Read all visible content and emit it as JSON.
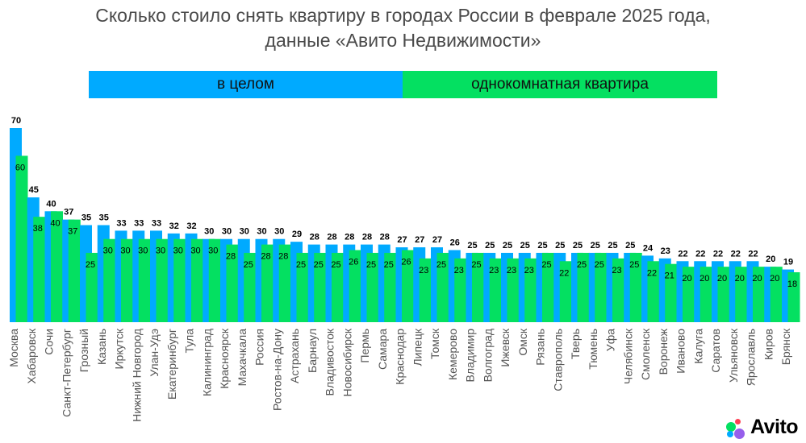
{
  "title": {
    "line1": "Сколько стоило снять квартиру в городах России в феврале 2025 года,",
    "line2": "данные «Авито Недвижимости»"
  },
  "legend": {
    "overall": "в целом",
    "one_room": "однокомнатная квартира"
  },
  "logo": {
    "text": "Avito"
  },
  "colors": {
    "overall": "#00aaff",
    "one_room": "#04e061",
    "title": "#4a4a4a",
    "axis_label": "#555555"
  },
  "chart_data": {
    "type": "bar",
    "title": "Сколько стоило снять квартиру в городах России в феврале 2025 года, данные «Авито Недвижимости»",
    "xlabel": "",
    "ylabel": "",
    "legend_placement": "top",
    "grid": false,
    "ylim": [
      0,
      70
    ],
    "categories": [
      "Москва",
      "Хабаровск",
      "Сочи",
      "Санкт-Петербург",
      "Грозный",
      "Казань",
      "Иркутск",
      "Нижний Новгород",
      "Улан-Удэ",
      "Екатеринбург",
      "Тула",
      "Калининград",
      "Красноярск",
      "Махачкала",
      "Россия",
      "Ростов-на-Дону",
      "Астрахань",
      "Барнаул",
      "Владивосток",
      "Новосибирск",
      "Пермь",
      "Самара",
      "Краснодар",
      "Липецк",
      "Томск",
      "Кемерово",
      "Владимир",
      "Волгоград",
      "Ижевск",
      "Омск",
      "Рязань",
      "Ставрополь",
      "Тверь",
      "Тюмень",
      "Уфа",
      "Челябинск",
      "Смоленск",
      "Воронеж",
      "Иваново",
      "Калуга",
      "Саратов",
      "Ульяновск",
      "Ярославль",
      "Киров",
      "Брянск"
    ],
    "series": [
      {
        "name": "в целом",
        "values": [
          70,
          45,
          40,
          37,
          35,
          35,
          33,
          33,
          33,
          32,
          32,
          30,
          30,
          30,
          30,
          30,
          29,
          28,
          28,
          28,
          28,
          28,
          27,
          27,
          27,
          26,
          25,
          25,
          25,
          25,
          25,
          25,
          25,
          25,
          25,
          25,
          24,
          23,
          22,
          22,
          22,
          22,
          22,
          20,
          19
        ]
      },
      {
        "name": "однокомнатная квартира",
        "values": [
          60,
          38,
          40,
          37,
          25,
          30,
          30,
          30,
          30,
          30,
          30,
          30,
          28,
          25,
          28,
          28,
          25,
          25,
          25,
          26,
          25,
          25,
          26,
          23,
          25,
          23,
          25,
          23,
          23,
          23,
          25,
          22,
          25,
          25,
          23,
          25,
          22,
          21,
          20,
          20,
          20,
          20,
          20,
          20,
          18
        ]
      }
    ]
  }
}
